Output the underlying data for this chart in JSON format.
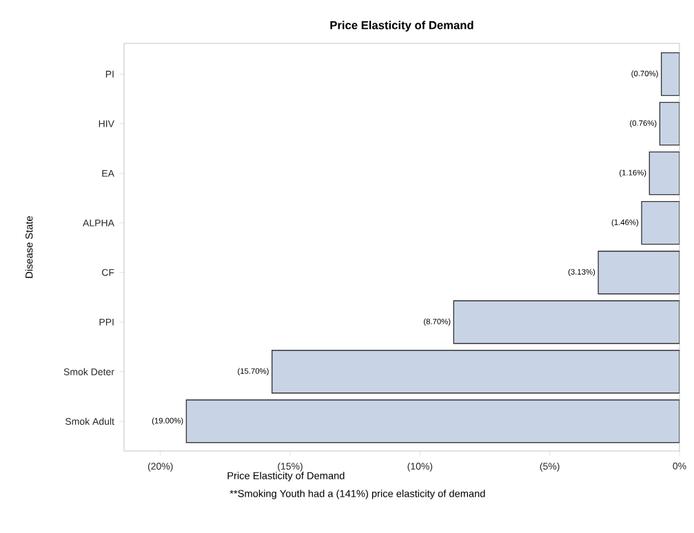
{
  "chart_data": {
    "type": "bar",
    "orientation": "horizontal",
    "title": "Price Elasticity of Demand",
    "xlabel": "Price Elasticity of Demand",
    "ylabel": "Disease State",
    "categories": [
      "PI",
      "HIV",
      "EA",
      "ALPHA",
      "CF",
      "PPI",
      "Smok Deter",
      "Smok Adult"
    ],
    "values": [
      -0.7,
      -0.76,
      -1.16,
      -1.46,
      -3.13,
      -8.7,
      -15.7,
      -19.0
    ],
    "value_labels": [
      "(0.70%)",
      "(0.76%)",
      "(1.16%)",
      "(1.46%)",
      "(3.13%)",
      "(8.70%)",
      "(15.70%)",
      "(19.00%)"
    ],
    "color": "#c8d4e6",
    "xlim": [
      -21.4,
      0
    ],
    "xticks": [
      {
        "value": -20,
        "label": "(20%)"
      },
      {
        "value": -15,
        "label": "(15%)"
      },
      {
        "value": -10,
        "label": "(10%)"
      },
      {
        "value": -5,
        "label": "(5%)"
      },
      {
        "value": 0,
        "label": "0%"
      }
    ],
    "annotations": [
      "**Smoking Youth had a (141%) price elasticity of demand"
    ]
  }
}
